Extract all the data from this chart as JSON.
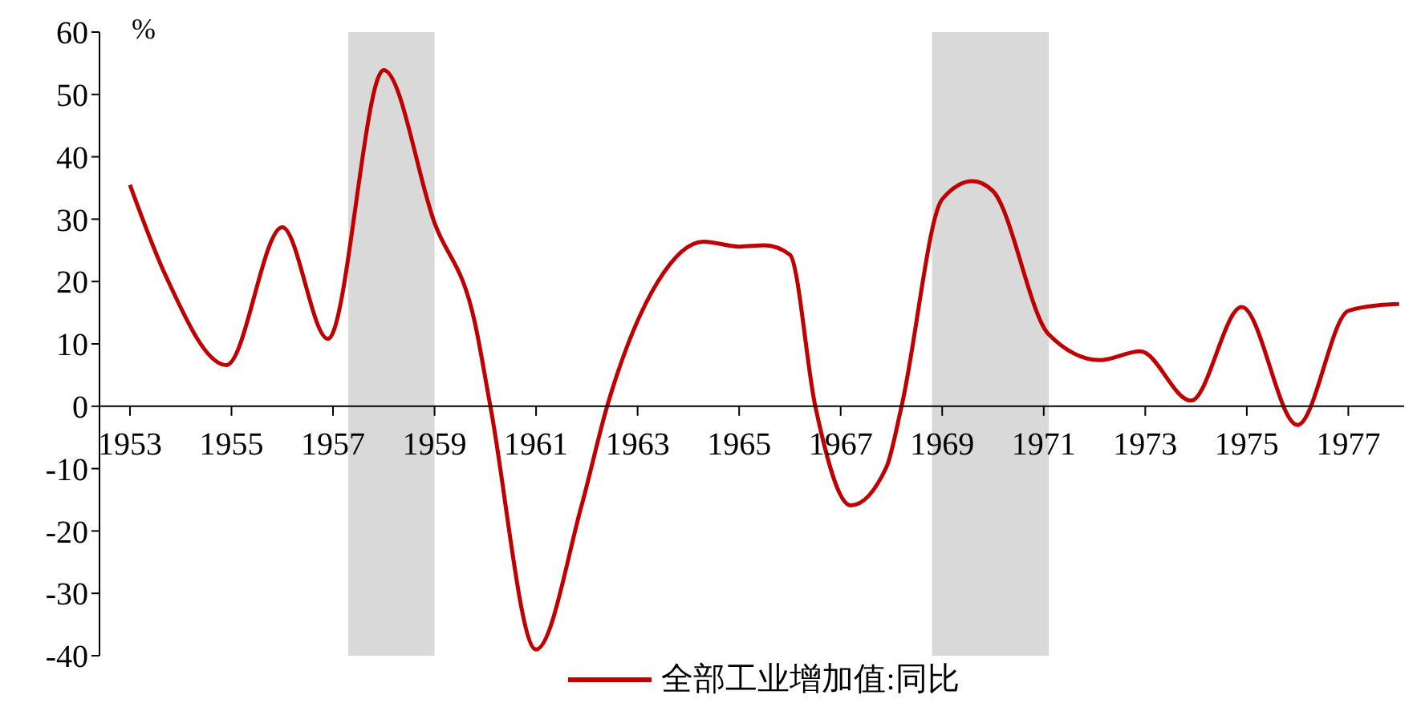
{
  "chart_data": {
    "type": "line",
    "ylabel": "%",
    "legend": "bottom",
    "marker": "none",
    "grid": false,
    "xlim": [
      1952.4,
      1978.1
    ],
    "xticks": [
      1953,
      1955,
      1957,
      1959,
      1961,
      1963,
      1965,
      1967,
      1969,
      1971,
      1973,
      1975,
      1977
    ],
    "ylim": [
      -40,
      60
    ],
    "yticks": [
      -40,
      -30,
      -20,
      -10,
      0,
      10,
      20,
      30,
      40,
      50,
      60
    ],
    "bands": [
      {
        "axis": "x",
        "from": 1957.3,
        "to": 1959.0,
        "color": "#d9d9d9"
      },
      {
        "axis": "x",
        "from": 1968.8,
        "to": 1971.1,
        "color": "#d9d9d9"
      }
    ],
    "series": [
      {
        "name": "全部工业增加值:同比",
        "color": "#c00000",
        "x": [
          1953.0,
          1953.7,
          1954.9,
          1956.0,
          1956.9,
          1958.0,
          1959.0,
          1959.8,
          1960.1,
          1961.0,
          1961.9,
          1962.4,
          1963.4,
          1964.3,
          1965.0,
          1965.5,
          1966.0,
          1966.5,
          1967.2,
          1967.9,
          1968.2,
          1969.0,
          1969.6,
          1970.0,
          1971.1,
          1972.1,
          1972.9,
          1973.9,
          1974.9,
          1976.0,
          1977.0,
          1977.6,
          1978.0
        ],
        "values": [
          35.5,
          21,
          6.6,
          28.7,
          10.8,
          53.9,
          29.4,
          13.2,
          0,
          -39,
          -15.8,
          0,
          20,
          26.4,
          25.6,
          25.8,
          24.3,
          0,
          -15.9,
          -9.8,
          0,
          33.2,
          36.1,
          34.5,
          11.5,
          7.4,
          8.8,
          0.9,
          15.9,
          -3,
          15.3,
          16.2,
          16.4
        ]
      }
    ]
  }
}
